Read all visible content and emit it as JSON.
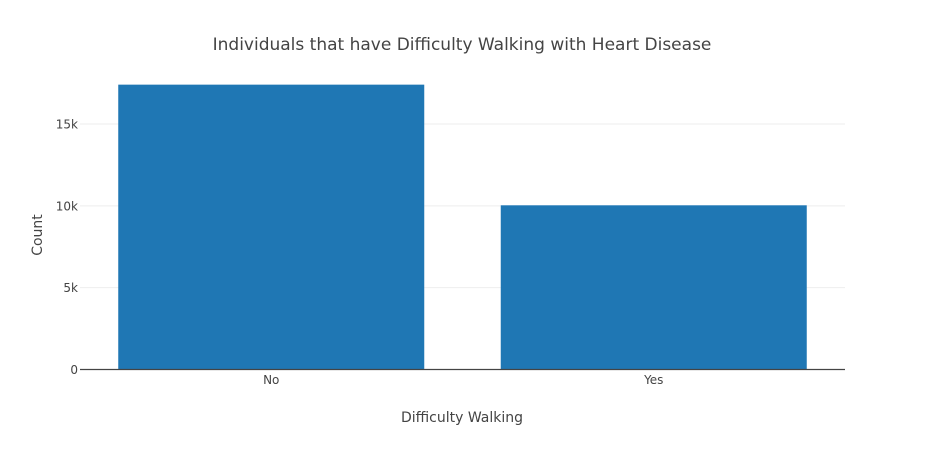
{
  "chart_data": {
    "type": "bar",
    "title": "Individuals that have Difficulty Walking with Heart Disease",
    "xlabel": "Difficulty Walking",
    "ylabel": "Count",
    "categories": [
      "No",
      "Yes"
    ],
    "values": [
      17405,
      10033
    ],
    "ylim": [
      0,
      18300
    ],
    "yticks": [
      0,
      5000,
      10000,
      15000
    ],
    "ytick_labels": [
      "0",
      "5k",
      "10k",
      "15k"
    ],
    "grid": true,
    "legend": "none",
    "colors": {
      "bar": "#1f77b4",
      "grid": "#eeeeee",
      "axis": "#444444",
      "text": "#444444",
      "background": "#ffffff"
    }
  }
}
